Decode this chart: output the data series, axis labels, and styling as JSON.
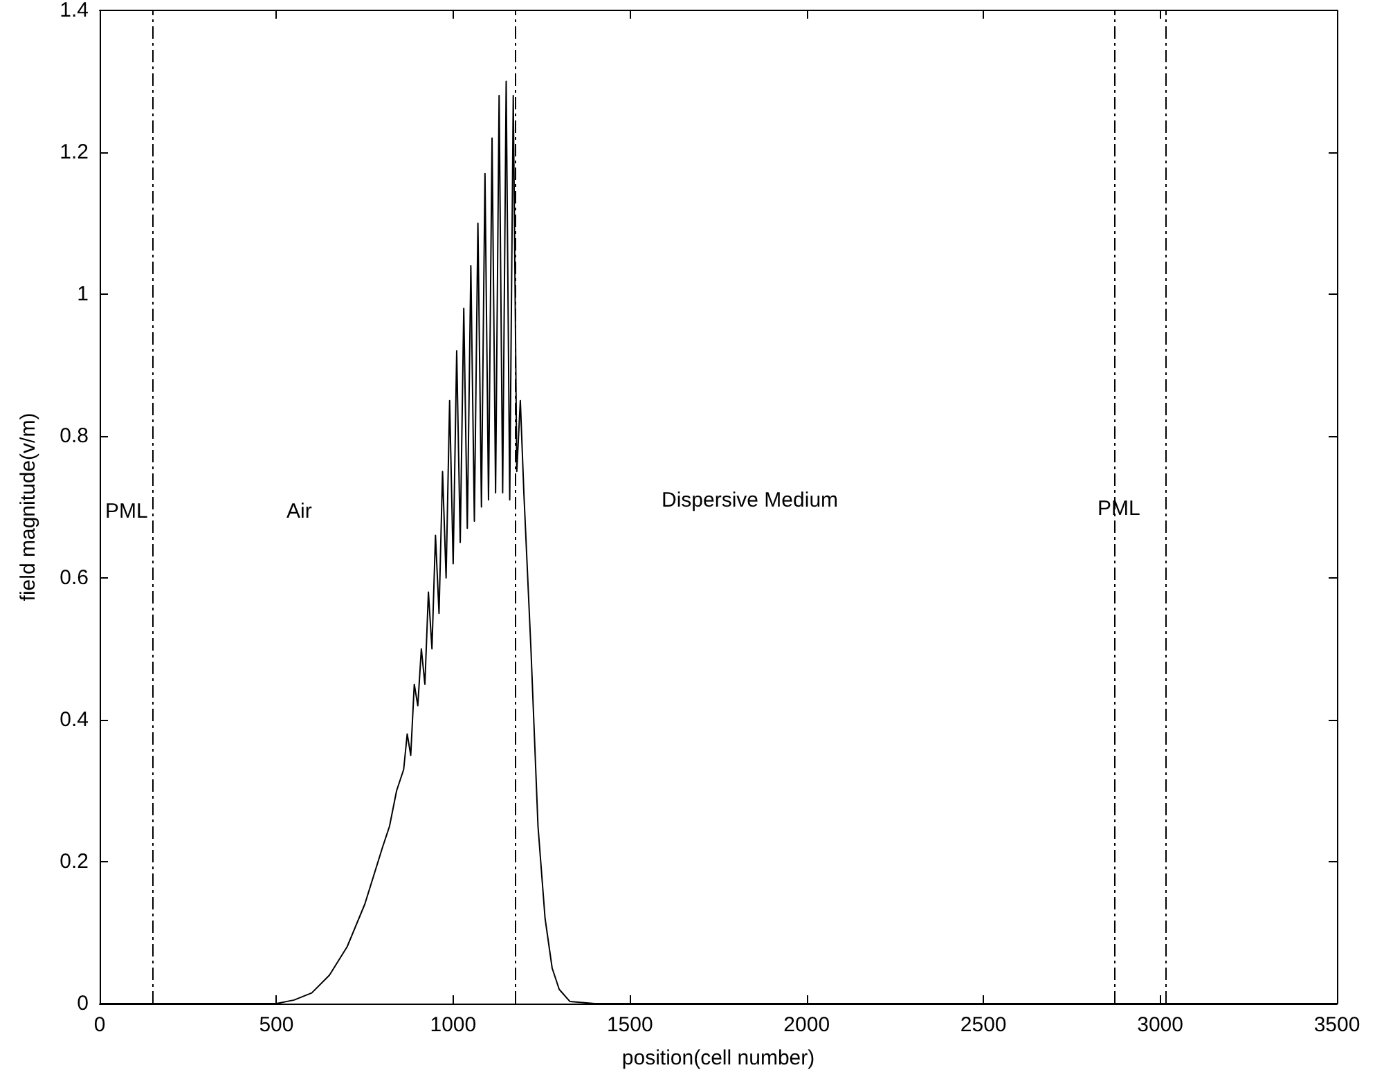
{
  "chart_data": {
    "type": "line",
    "xlabel": "position(cell number)",
    "ylabel": "field magnitude(v/m)",
    "xlim": [
      0,
      3500
    ],
    "xticks": [
      0,
      500,
      1000,
      1500,
      2000,
      2500,
      3000,
      3500
    ],
    "ylim": [
      0,
      1.4
    ],
    "yticks": [
      0,
      0.2,
      0.4,
      0.6,
      0.8,
      1,
      1.2,
      1.4
    ],
    "grid": false,
    "marker": "none",
    "line_style": "solid",
    "series": [
      {
        "color": "#000000",
        "x": [
          0,
          500,
          550,
          600,
          650,
          700,
          750,
          800,
          820,
          840,
          860,
          870,
          880,
          890,
          900,
          910,
          920,
          930,
          940,
          950,
          960,
          970,
          980,
          990,
          1000,
          1010,
          1020,
          1030,
          1040,
          1050,
          1060,
          1070,
          1080,
          1090,
          1100,
          1110,
          1120,
          1130,
          1140,
          1150,
          1160,
          1170,
          1180,
          1190,
          1200,
          1220,
          1240,
          1260,
          1280,
          1300,
          1330,
          1400,
          3500
        ],
        "values": [
          0,
          0,
          0.005,
          0.015,
          0.04,
          0.08,
          0.14,
          0.22,
          0.25,
          0.3,
          0.33,
          0.38,
          0.35,
          0.45,
          0.42,
          0.5,
          0.45,
          0.58,
          0.5,
          0.66,
          0.55,
          0.75,
          0.6,
          0.85,
          0.62,
          0.92,
          0.65,
          0.98,
          0.67,
          1.04,
          0.68,
          1.1,
          0.7,
          1.17,
          0.71,
          1.22,
          0.72,
          1.28,
          0.72,
          1.3,
          0.71,
          1.28,
          0.75,
          0.85,
          0.72,
          0.5,
          0.25,
          0.12,
          0.05,
          0.02,
          0.003,
          0,
          0
        ]
      }
    ],
    "ref_lines": [
      {
        "axis": "x",
        "value": 150,
        "color": "#000000",
        "line_style": "dashed"
      },
      {
        "axis": "x",
        "value": 1175,
        "color": "#000000",
        "line_style": "dashed"
      },
      {
        "axis": "x",
        "value": 2870,
        "color": "#000000",
        "line_style": "dashed"
      },
      {
        "axis": "x",
        "value": 3015,
        "color": "#000000",
        "line_style": "dashed"
      }
    ],
    "annotations": [
      "PML",
      "Air",
      "Dispersive Medium",
      "PML"
    ]
  }
}
